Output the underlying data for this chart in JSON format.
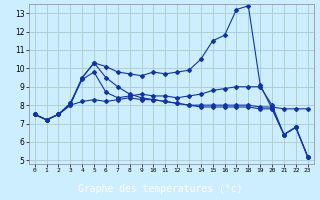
{
  "xlabel": "Graphe des températures (°c)",
  "background_color": "#cceeff",
  "grid_color": "#aacccc",
  "line_color": "#1133aa",
  "label_bg_color": "#1a3399",
  "label_text_color": "#ffffff",
  "xlim_min": -0.5,
  "xlim_max": 23.5,
  "ylim_min": 4.8,
  "ylim_max": 13.5,
  "yticks": [
    5,
    6,
    7,
    8,
    9,
    10,
    11,
    12,
    13
  ],
  "xticks": [
    0,
    1,
    2,
    3,
    4,
    5,
    6,
    7,
    8,
    9,
    10,
    11,
    12,
    13,
    14,
    15,
    16,
    17,
    18,
    19,
    20,
    21,
    22,
    23
  ],
  "line1_x": [
    0,
    1,
    2,
    3,
    4,
    5,
    6,
    7,
    8,
    9,
    10,
    11,
    12,
    13,
    14,
    15,
    16,
    17,
    18,
    19,
    20,
    21,
    22,
    23
  ],
  "line1_y": [
    7.5,
    7.2,
    7.5,
    8.1,
    9.5,
    10.3,
    10.1,
    9.8,
    9.7,
    9.6,
    9.8,
    9.7,
    9.8,
    9.9,
    10.5,
    11.5,
    11.8,
    13.2,
    13.4,
    9.1,
    7.8,
    6.4,
    6.8,
    5.2
  ],
  "line2_x": [
    0,
    1,
    2,
    3,
    4,
    5,
    6,
    7,
    8,
    9,
    10,
    11,
    12,
    13,
    14,
    15,
    16,
    17,
    18,
    19,
    20,
    21,
    22,
    23
  ],
  "line2_y": [
    7.5,
    7.2,
    7.5,
    8.0,
    8.2,
    8.3,
    8.2,
    8.3,
    8.4,
    8.3,
    8.3,
    8.2,
    8.1,
    8.0,
    8.0,
    8.0,
    8.0,
    8.0,
    8.0,
    7.9,
    7.9,
    7.8,
    7.8,
    7.8
  ],
  "line3_x": [
    0,
    1,
    2,
    3,
    4,
    5,
    6,
    7,
    8,
    9,
    10,
    11,
    12,
    13,
    14,
    15,
    16,
    17,
    18,
    19,
    20,
    21,
    22,
    23
  ],
  "line3_y": [
    7.5,
    7.2,
    7.5,
    8.1,
    9.4,
    9.8,
    8.7,
    8.4,
    8.5,
    8.6,
    8.5,
    8.5,
    8.4,
    8.5,
    8.6,
    8.8,
    8.9,
    9.0,
    9.0,
    9.0,
    8.0,
    6.4,
    6.8,
    5.2
  ],
  "line4_x": [
    0,
    1,
    2,
    3,
    4,
    5,
    6,
    7,
    8,
    9,
    10,
    11,
    12,
    13,
    14,
    15,
    16,
    17,
    18,
    19,
    20,
    21,
    22,
    23
  ],
  "line4_y": [
    7.5,
    7.2,
    7.5,
    8.0,
    9.5,
    10.3,
    9.5,
    9.0,
    8.6,
    8.4,
    8.3,
    8.2,
    8.1,
    8.0,
    7.9,
    7.9,
    7.9,
    7.9,
    7.9,
    7.8,
    7.8,
    6.4,
    6.8,
    5.2
  ]
}
